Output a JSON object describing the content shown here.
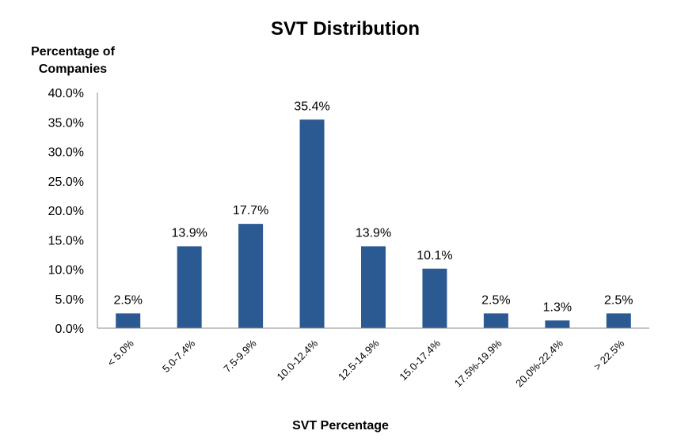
{
  "chart_data": {
    "type": "bar",
    "title": "SVT Distribution",
    "ylabel_lines": [
      "Percentage of",
      "Companies"
    ],
    "xlabel": "SVT Percentage",
    "categories": [
      "< 5.0%",
      "5.0-7.4%",
      "7.5-9.9%",
      "10.0-12.4%",
      "12.5-14.9%",
      "15.0-17.4%",
      "17.5%-19.9%",
      "20.0%-22.4%",
      "> 22.5%"
    ],
    "values": [
      2.5,
      13.9,
      17.7,
      35.4,
      13.9,
      10.1,
      2.5,
      1.3,
      2.5
    ],
    "data_labels": [
      "2.5%",
      "13.9%",
      "17.7%",
      "35.4%",
      "13.9%",
      "10.1%",
      "2.5%",
      "1.3%",
      "2.5%"
    ],
    "yticks": [
      0,
      5,
      10,
      15,
      20,
      25,
      30,
      35,
      40
    ],
    "ytick_labels": [
      "0.0%",
      "5.0%",
      "10.0%",
      "15.0%",
      "20.0%",
      "25.0%",
      "30.0%",
      "35.0%",
      "40.0%"
    ],
    "ylim": [
      0,
      40
    ],
    "grid": false,
    "legend": "none",
    "bar_color": "#2a5a91"
  }
}
